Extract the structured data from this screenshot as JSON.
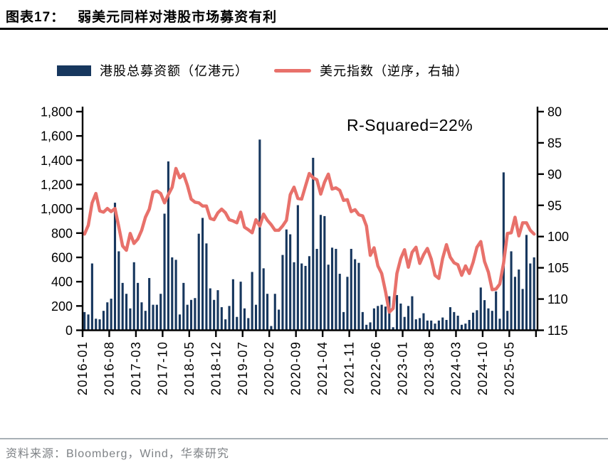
{
  "header": {
    "label": "图表17：",
    "title": "弱美元同样对港股市场募资有利"
  },
  "legend": {
    "bars": {
      "label": "港股总募资额（亿港元）",
      "color": "#17375E"
    },
    "line": {
      "label": "美元指数（逆序，右轴）",
      "color": "#E8716B"
    }
  },
  "footer": {
    "source": "资料来源：Bloomberg，Wind，华泰研究"
  },
  "chart_data": {
    "type": "bar",
    "title": "弱美元同样对港股市场募资有利",
    "annotation": "R-Squared=22%",
    "left_axis": {
      "label": "港股总募资额（亿港元）",
      "min": 0,
      "max": 1800,
      "step": 200
    },
    "right_axis": {
      "label": "美元指数（逆序，右轴）",
      "min": 80,
      "max": 115,
      "step": 5,
      "inverted": true
    },
    "x_tick_labels": [
      "2016-01",
      "2016-08",
      "2017-03",
      "2017-10",
      "2018-05",
      "2018-12",
      "2019-07",
      "2020-02",
      "2020-09",
      "2021-04",
      "2021-11",
      "2022-06",
      "2023-01",
      "2023-08",
      "2024-03",
      "2024-10",
      "2025-05"
    ],
    "months": [
      "2016-01",
      "2016-02",
      "2016-03",
      "2016-04",
      "2016-05",
      "2016-06",
      "2016-07",
      "2016-08",
      "2016-09",
      "2016-10",
      "2016-11",
      "2016-12",
      "2017-01",
      "2017-02",
      "2017-03",
      "2017-04",
      "2017-05",
      "2017-06",
      "2017-07",
      "2017-08",
      "2017-09",
      "2017-10",
      "2017-11",
      "2017-12",
      "2018-01",
      "2018-02",
      "2018-03",
      "2018-04",
      "2018-05",
      "2018-06",
      "2018-07",
      "2018-08",
      "2018-09",
      "2018-10",
      "2018-11",
      "2018-12",
      "2019-01",
      "2019-02",
      "2019-03",
      "2019-04",
      "2019-05",
      "2019-06",
      "2019-07",
      "2019-08",
      "2019-09",
      "2019-10",
      "2019-11",
      "2019-12",
      "2020-01",
      "2020-02",
      "2020-03",
      "2020-04",
      "2020-05",
      "2020-06",
      "2020-07",
      "2020-08",
      "2020-09",
      "2020-10",
      "2020-11",
      "2020-12",
      "2021-01",
      "2021-02",
      "2021-03",
      "2021-04",
      "2021-05",
      "2021-06",
      "2021-07",
      "2021-08",
      "2021-09",
      "2021-10",
      "2021-11",
      "2021-12",
      "2022-01",
      "2022-02",
      "2022-03",
      "2022-04",
      "2022-05",
      "2022-06",
      "2022-07",
      "2022-08",
      "2022-09",
      "2022-10",
      "2022-11",
      "2022-12",
      "2023-01",
      "2023-02",
      "2023-03",
      "2023-04",
      "2023-05",
      "2023-06",
      "2023-07",
      "2023-08",
      "2023-09",
      "2023-10",
      "2023-11",
      "2023-12",
      "2024-01",
      "2024-02",
      "2024-03",
      "2024-04",
      "2024-05",
      "2024-06",
      "2024-07",
      "2024-08",
      "2024-09",
      "2024-10",
      "2024-11",
      "2024-12",
      "2025-01",
      "2025-02",
      "2025-03",
      "2025-04",
      "2025-05",
      "2025-06",
      "2025-07",
      "2025-08",
      "2025-09",
      "2025-10",
      "2025-11"
    ],
    "series": [
      {
        "name": "港股总募资额（亿港元）",
        "type": "bar",
        "axis": "left",
        "color": "#17375E",
        "values": [
          150,
          130,
          550,
          95,
          90,
          160,
          230,
          260,
          1050,
          650,
          390,
          300,
          180,
          560,
          390,
          230,
          160,
          430,
          210,
          210,
          300,
          960,
          1390,
          600,
          580,
          130,
          390,
          210,
          250,
          265,
          795,
          925,
          715,
          345,
          250,
          330,
          190,
          90,
          200,
          420,
          110,
          400,
          180,
          100,
          480,
          210,
          1570,
          510,
          300,
          35,
          300,
          170,
          620,
          830,
          790,
          560,
          1030,
          550,
          530,
          610,
          1420,
          670,
          950,
          940,
          540,
          680,
          670,
          465,
          150,
          440,
          670,
          585,
          555,
          150,
          45,
          65,
          180,
          200,
          210,
          195,
          280,
          25,
          290,
          220,
          110,
          200,
          280,
          90,
          100,
          140,
          80,
          80,
          55,
          80,
          105,
          85,
          190,
          150,
          120,
          45,
          55,
          85,
          145,
          165,
          352,
          248,
          180,
          160,
          320,
          95,
          1300,
          160,
          650,
          440,
          500,
          340,
          785,
          550,
          600
        ]
      },
      {
        "name": "美元指数（逆序，右轴）",
        "type": "line",
        "axis": "right",
        "color": "#E8716B",
        "values": [
          99.6,
          98.2,
          94.6,
          93.1,
          95.9,
          96.1,
          95.5,
          96.0,
          95.5,
          98.4,
          101.5,
          102.2,
          99.5,
          101.1,
          100.4,
          99.0,
          96.9,
          95.6,
          92.9,
          92.7,
          93.1,
          94.6,
          93.3,
          92.1,
          89.1,
          90.6,
          90.0,
          91.8,
          94.0,
          94.5,
          94.6,
          95.1,
          95.1,
          97.1,
          97.3,
          96.2,
          95.6,
          96.2,
          97.3,
          97.5,
          97.8,
          96.1,
          98.5,
          98.9,
          99.4,
          97.3,
          98.3,
          96.4,
          97.4,
          98.1,
          99.0,
          99.0,
          98.3,
          97.4,
          93.3,
          92.1,
          93.9,
          94.0,
          91.9,
          89.9,
          90.6,
          90.9,
          93.2,
          91.3,
          90.0,
          92.4,
          92.2,
          92.6,
          94.2,
          94.1,
          96.0,
          95.7,
          96.5,
          96.7,
          98.3,
          103.0,
          101.8,
          104.7,
          105.9,
          108.8,
          112.1,
          111.5,
          105.9,
          103.5,
          102.1,
          104.9,
          102.5,
          101.7,
          104.3,
          102.9,
          101.9,
          103.6,
          106.2,
          106.7,
          103.5,
          101.3,
          103.3,
          104.2,
          104.5,
          106.2,
          104.7,
          105.9,
          104.1,
          101.7,
          100.8,
          104.0,
          105.7,
          108.5,
          108.4,
          107.6,
          104.2,
          99.5,
          99.4,
          96.9,
          99.9,
          97.8,
          97.8,
          99.0,
          99.6
        ]
      }
    ],
    "grid": false,
    "legend_position": "top"
  }
}
